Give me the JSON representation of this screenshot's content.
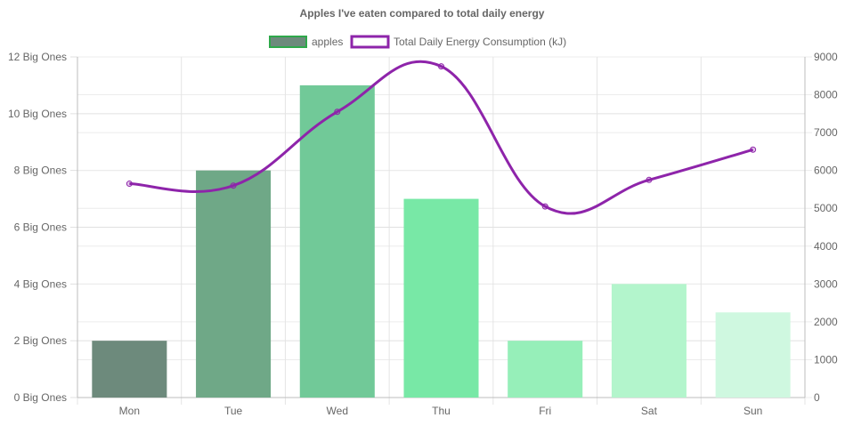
{
  "chart_data": {
    "type": "bar",
    "title": "Apples I've eaten compared to total daily energy",
    "categories": [
      "Mon",
      "Tue",
      "Wed",
      "Thu",
      "Fri",
      "Sat",
      "Sun"
    ],
    "series": [
      {
        "name": "apples",
        "type": "bar",
        "axis": "left",
        "values": [
          2,
          8,
          11,
          7,
          2,
          4,
          3
        ],
        "colors": [
          "#6d8a7c",
          "#6fa887",
          "#71c998",
          "#78e8a6",
          "#96efb9",
          "#b3f5cc",
          "#cff8e0"
        ],
        "legend_fill": "#6d8a7c",
        "legend_stroke": "#2ea84a"
      },
      {
        "name": "Total Daily Energy Consumption (kJ)",
        "type": "line",
        "axis": "right",
        "smooth": true,
        "values": [
          5650,
          5600,
          7550,
          8750,
          5050,
          5750,
          6550
        ],
        "color": "#8e24aa"
      }
    ],
    "y_left": {
      "ylim": [
        0,
        12
      ],
      "ticks": [
        0,
        2,
        4,
        6,
        8,
        10,
        12
      ],
      "tick_labels": [
        "0 Big Ones",
        "2 Big Ones",
        "4 Big Ones",
        "6 Big Ones",
        "8 Big Ones",
        "10 Big Ones",
        "12 Big Ones"
      ]
    },
    "y_right": {
      "ylim": [
        0,
        9000
      ],
      "ticks": [
        0,
        1000,
        2000,
        3000,
        4000,
        5000,
        6000,
        7000,
        8000,
        9000
      ],
      "tick_labels": [
        "0",
        "1000",
        "2000",
        "3000",
        "4000",
        "5000",
        "6000",
        "7000",
        "8000",
        "9000"
      ]
    },
    "grid": true,
    "legend_position": "top"
  }
}
